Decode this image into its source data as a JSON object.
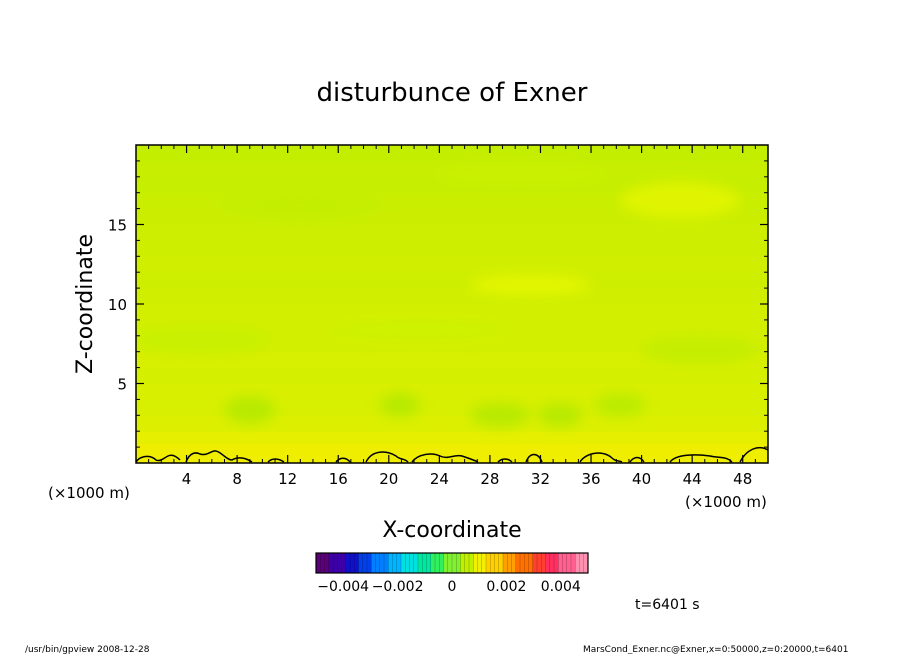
{
  "chart_data": {
    "type": "heatmap",
    "title": "disturbunce of Exner",
    "xlabel": "X-coordinate",
    "ylabel": "Z-coordinate",
    "x_unit_left": "(×1000 m)",
    "x_unit_right": "(×1000 m)",
    "xlim": [
      0,
      50
    ],
    "ylim": [
      0,
      20
    ],
    "x_ticks": [
      4,
      8,
      12,
      16,
      20,
      24,
      28,
      32,
      36,
      40,
      44,
      48
    ],
    "y_ticks": [
      5,
      10,
      15
    ],
    "colorbar": {
      "range": [
        -0.005,
        0.005
      ],
      "tick_values": [
        -0.004,
        -0.002,
        0,
        0.002,
        0.004
      ],
      "tick_labels": [
        "−0.004",
        "−0.002",
        "0",
        "0.002",
        "0.004"
      ],
      "colors": [
        "#5a0078",
        "#3d00a8",
        "#1010c8",
        "#0040e8",
        "#0080ff",
        "#00b4ff",
        "#00e0e0",
        "#00e8a0",
        "#30f060",
        "#80f030",
        "#c0f000",
        "#f0f000",
        "#ffd000",
        "#ffa000",
        "#ff7000",
        "#ff4030",
        "#ff3060",
        "#ff6090",
        "#ff90b0"
      ]
    },
    "field": {
      "description_rows": "bottom to top",
      "levels": [
        0.0022,
        0.0015,
        0.0009,
        0.0006,
        0.0007,
        0.0005,
        0.0006,
        0.0004,
        0.0003,
        0.0004,
        0.0002,
        0.0001,
        0.0002,
        0.0001,
        0.0,
        -0.0001,
        -0.0002,
        -0.0004,
        -0.0003,
        -0.0005
      ]
    }
  },
  "footer": {
    "time": "t=6401 s",
    "left_note": "/usr/bin/gpview   2008-12-28",
    "right_note": "MarsCond_Exner.nc@Exner,x=0:50000,z=0:20000,t=6401"
  }
}
